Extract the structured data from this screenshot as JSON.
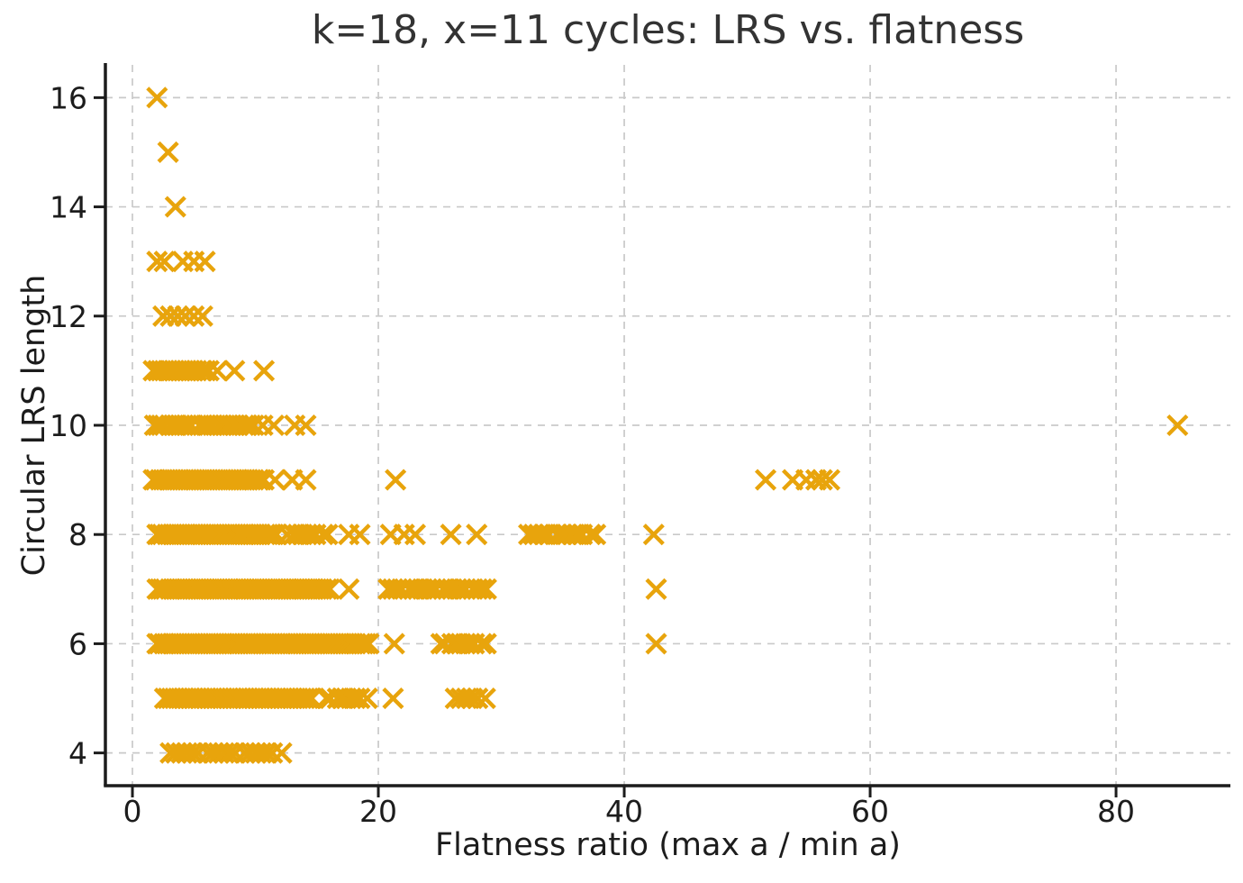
{
  "chart_data": {
    "type": "scatter",
    "title": "k=18, x=11 cycles: LRS vs. flatness",
    "xlabel": "Flatness ratio (max a / min a)",
    "ylabel": "Circular LRS length",
    "xlim": [
      -2.2,
      89.3
    ],
    "ylim": [
      3.4,
      16.6
    ],
    "xticks": [
      0,
      20,
      40,
      60,
      80
    ],
    "yticks": [
      4,
      6,
      8,
      10,
      12,
      14,
      16
    ],
    "grid": true,
    "legend": false,
    "marker": "x",
    "marker_color": "#E8A40C",
    "axis_color": "#1c1c1c",
    "grid_color": "#c9c9c9",
    "rows": [
      {
        "y": 16,
        "x": [
          2.0
        ],
        "bands": []
      },
      {
        "y": 15,
        "x": [
          2.9
        ],
        "bands": []
      },
      {
        "y": 14,
        "x": [
          3.5
        ],
        "bands": []
      },
      {
        "y": 13,
        "x": [
          2.0,
          2.6,
          4.1,
          5.0,
          5.9
        ],
        "bands": []
      },
      {
        "y": 12,
        "x": [
          2.5,
          3.1,
          3.7,
          4.3,
          5.0,
          5.7
        ],
        "bands": []
      },
      {
        "y": 11,
        "x": [
          6.9,
          8.3,
          10.7
        ],
        "bands": [
          [
            1.7,
            6.3,
            0.3
          ]
        ]
      },
      {
        "y": 10,
        "x": [
          10.6,
          11.5,
          13.2,
          14.1,
          85.0
        ],
        "bands": [
          [
            1.8,
            4.8,
            0.3
          ],
          [
            5.4,
            9.9,
            0.3
          ]
        ]
      },
      {
        "y": 9,
        "x": [
          11.6,
          13.0,
          14.1,
          21.4,
          51.5,
          53.7,
          54.8,
          55.6,
          56.1,
          56.7
        ],
        "bands": [
          [
            1.7,
            10.7,
            0.25
          ]
        ]
      },
      {
        "y": 8,
        "x": [
          17.6,
          18.5,
          21.0,
          22.1,
          23.0,
          25.9,
          28.0,
          42.4
        ],
        "bands": [
          [
            2.0,
            11.8,
            0.25
          ],
          [
            12.6,
            16.1,
            0.4
          ],
          [
            32.2,
            38.0,
            0.45
          ]
        ]
      },
      {
        "y": 7,
        "x": [
          17.6,
          42.6
        ],
        "bands": [
          [
            2.0,
            16.2,
            0.25
          ],
          [
            20.8,
            29.0,
            0.4
          ]
        ]
      },
      {
        "y": 6,
        "x": [
          21.3,
          42.6
        ],
        "bands": [
          [
            2.0,
            19.3,
            0.25
          ],
          [
            25.1,
            29.0,
            0.4
          ]
        ]
      },
      {
        "y": 5,
        "x": [
          21.2
        ],
        "bands": [
          [
            2.6,
            14.7,
            0.3
          ],
          [
            15.8,
            19.1,
            0.4
          ],
          [
            26.2,
            28.7,
            0.5
          ]
        ]
      },
      {
        "y": 4,
        "x": [],
        "bands": [
          [
            3.0,
            12.2,
            0.5
          ]
        ]
      }
    ]
  }
}
